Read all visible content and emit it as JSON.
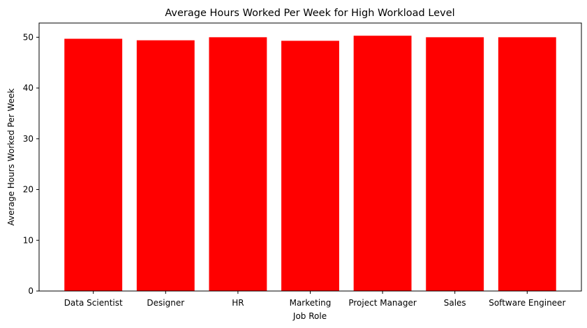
{
  "chart_data": {
    "type": "bar",
    "title": "Average Hours Worked Per Week for High Workload Level",
    "xlabel": "Job Role",
    "ylabel": "Average Hours Worked Per Week",
    "categories": [
      "Data Scientist",
      "Designer",
      "HR",
      "Marketing",
      "Project Manager",
      "Sales",
      "Software Engineer"
    ],
    "values": [
      49.7,
      49.4,
      50.0,
      49.3,
      50.3,
      50.0,
      50.0
    ],
    "ylim": [
      0,
      52.8
    ],
    "yticks": [
      0,
      10,
      20,
      30,
      40,
      50
    ],
    "bar_color": "#ff0000",
    "grid": false,
    "legend": "none"
  }
}
